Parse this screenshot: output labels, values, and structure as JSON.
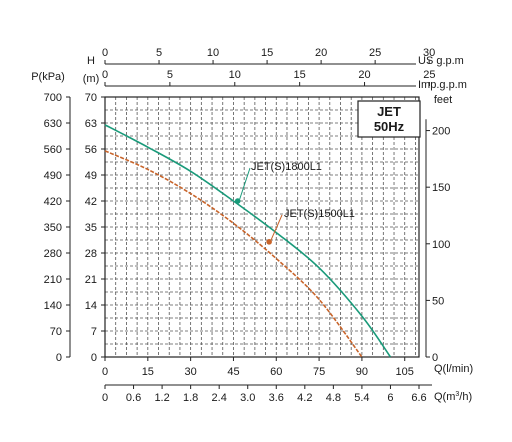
{
  "chart_data": {
    "type": "line",
    "title": "JET",
    "subtitle": "50Hz",
    "x_axes": {
      "q_lmin": {
        "label": "Q(l/min)",
        "ticks": [
          "0",
          "15",
          "30",
          "45",
          "60",
          "75",
          "90",
          "105"
        ]
      },
      "q_m3h": {
        "label": "Q(m³/h)",
        "ticks": [
          "0",
          "0.6",
          "1.2",
          "1.8",
          "2.4",
          "3.0",
          "3.6",
          "4.2",
          "4.8",
          "5.4",
          "6",
          "6.6"
        ]
      },
      "us_gpm": {
        "label": "US g.p.m",
        "ticks": [
          "0",
          "5",
          "10",
          "15",
          "20",
          "25",
          "30"
        ]
      },
      "imp_gpm": {
        "label": "Imp.g.p.m",
        "ticks": [
          "0",
          "5",
          "10",
          "15",
          "20",
          "25"
        ]
      }
    },
    "y_axes": {
      "pressure": {
        "label": "P(kPa)",
        "ticks": [
          "0",
          "70",
          "140",
          "210",
          "280",
          "350",
          "420",
          "490",
          "560",
          "630",
          "700"
        ]
      },
      "head_m": {
        "label_top": "H",
        "label": "(m)",
        "ticks": [
          "0",
          "7",
          "14",
          "21",
          "28",
          "35",
          "42",
          "49",
          "56",
          "63",
          "70"
        ]
      },
      "head_ft": {
        "label": "feet",
        "ticks": [
          "0",
          "50",
          "100",
          "150",
          "200"
        ]
      }
    },
    "xlim": [
      0,
      110
    ],
    "ylim": [
      0,
      70
    ],
    "grid": true,
    "series": [
      {
        "name": "JET(S)1800L1",
        "color": "#1a9a7a",
        "x": [
          0,
          15,
          30,
          45,
          60,
          75,
          90,
          100
        ],
        "y": [
          62.5,
          56.5,
          50,
          42,
          33.5,
          24,
          11,
          0
        ],
        "marker_at": [
          46.5,
          42
        ]
      },
      {
        "name": "JET(S)1500L1",
        "color": "#c8642a",
        "x": [
          0,
          15,
          30,
          45,
          60,
          75,
          90
        ],
        "y": [
          55.5,
          50.5,
          44,
          36,
          26.5,
          15.5,
          0
        ],
        "marker_at": [
          57.5,
          31
        ]
      }
    ]
  }
}
